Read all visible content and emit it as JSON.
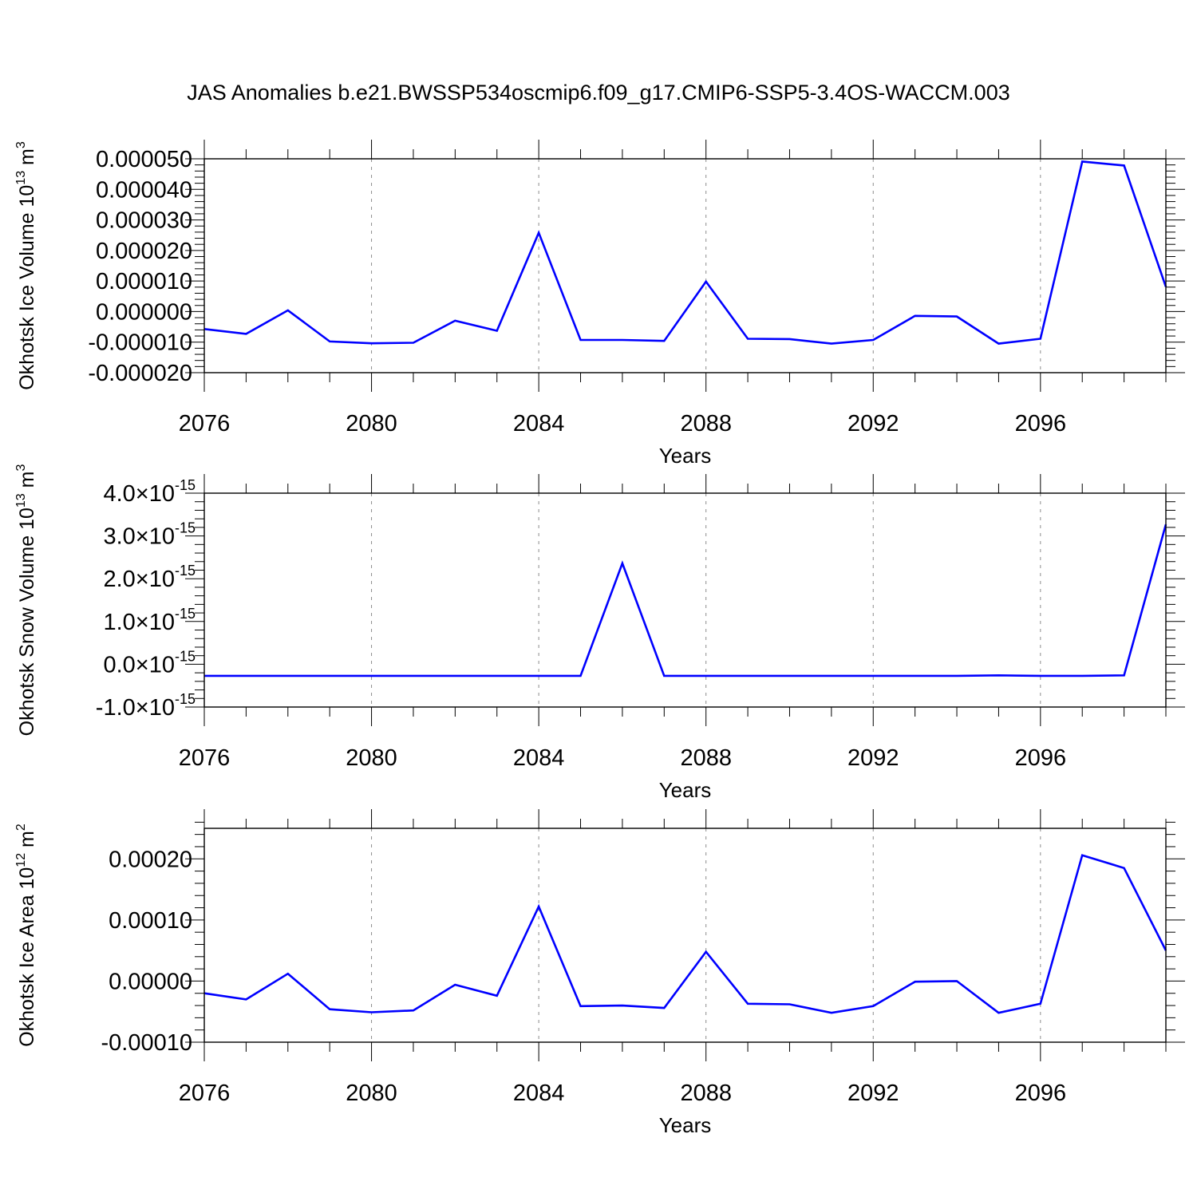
{
  "title": "JAS Anomalies b.e21.BWSSP534oscmip6.f09_g17.CMIP6-SSP5-3.4OS-WACCM.003",
  "colors": {
    "line": "#0000ff",
    "axis": "#000000",
    "grid": "#8c8c8c"
  },
  "chart_data": [
    {
      "type": "line",
      "ylabel": "Okhotsk Ice Volume 10",
      "ylabel_exp": "13",
      "ylabel_unit": " m",
      "ylabel_unit_exp": "3",
      "xlabel": "Years",
      "xlim": [
        2076,
        2099
      ],
      "ylim": [
        -2e-05,
        5e-05
      ],
      "xticks": [
        2076,
        2080,
        2084,
        2088,
        2092,
        2096
      ],
      "xtick_labels": [
        "2076",
        "2080",
        "2084",
        "2088",
        "2092",
        "2096"
      ],
      "yticks": [
        -2e-05,
        -1e-05,
        0,
        1e-05,
        2e-05,
        3e-05,
        4e-05,
        5e-05
      ],
      "ytick_labels": [
        "-0.000020",
        "-0.000010",
        "0.000000",
        "0.000010",
        "0.000020",
        "0.000030",
        "0.000040",
        "0.000050"
      ],
      "grid": "x dashed at major ticks",
      "x": [
        2076,
        2077,
        2078,
        2079,
        2080,
        2081,
        2082,
        2083,
        2084,
        2085,
        2086,
        2087,
        2088,
        2089,
        2090,
        2091,
        2092,
        2093,
        2094,
        2095,
        2096,
        2097,
        2098,
        2099
      ],
      "series": [
        {
          "values": [
            -5.7e-06,
            -7.3e-06,
            4e-07,
            -9.8e-06,
            -1.04e-05,
            -1.02e-05,
            -3e-06,
            -6.3e-06,
            2.58e-05,
            -9.3e-06,
            -9.3e-06,
            -9.6e-06,
            9.8e-06,
            -8.9e-06,
            -9e-06,
            -1.05e-05,
            -9.3e-06,
            -1.4e-06,
            -1.6e-06,
            -1.05e-05,
            -8.9e-06,
            4.91e-05,
            4.78e-05,
            8.1e-06
          ]
        }
      ]
    },
    {
      "type": "line",
      "ylabel": "Okhotsk Snow Volume 10",
      "ylabel_exp": "13",
      "ylabel_unit": " m",
      "ylabel_unit_exp": "3",
      "xlabel": "Years",
      "xlim": [
        2076,
        2099
      ],
      "ylim": [
        -1e-15,
        4e-15
      ],
      "xticks": [
        2076,
        2080,
        2084,
        2088,
        2092,
        2096
      ],
      "xtick_labels": [
        "2076",
        "2080",
        "2084",
        "2088",
        "2092",
        "2096"
      ],
      "yticks": [
        -1e-15,
        0,
        1e-15,
        2e-15,
        3e-15,
        4e-15
      ],
      "ytick_labels": [
        {
          "mant": "-1.0",
          "times": "×",
          "base": "10",
          "exp": "-15"
        },
        {
          "mant": "0.0",
          "times": "×",
          "base": "10",
          "exp": "-15"
        },
        {
          "mant": "1.0",
          "times": "×",
          "base": "10",
          "exp": "-15"
        },
        {
          "mant": "2.0",
          "times": "×",
          "base": "10",
          "exp": "-15"
        },
        {
          "mant": "3.0",
          "times": "×",
          "base": "10",
          "exp": "-15"
        },
        {
          "mant": "4.0",
          "times": "×",
          "base": "10",
          "exp": "-15"
        }
      ],
      "grid": "x dashed at major ticks",
      "x": [
        2076,
        2077,
        2078,
        2079,
        2080,
        2081,
        2082,
        2083,
        2084,
        2085,
        2086,
        2087,
        2088,
        2089,
        2090,
        2091,
        2092,
        2093,
        2094,
        2095,
        2096,
        2097,
        2098,
        2099
      ],
      "series": [
        {
          "values": [
            -2.7e-16,
            -2.7e-16,
            -2.7e-16,
            -2.7e-16,
            -2.7e-16,
            -2.7e-16,
            -2.7e-16,
            -2.7e-16,
            -2.7e-16,
            -2.7e-16,
            2.36e-15,
            -2.7e-16,
            -2.7e-16,
            -2.7e-16,
            -2.7e-16,
            -2.7e-16,
            -2.7e-16,
            -2.7e-16,
            -2.7e-16,
            -2.6e-16,
            -2.7e-16,
            -2.7e-16,
            -2.6e-16,
            3.27e-15
          ]
        }
      ]
    },
    {
      "type": "line",
      "ylabel": "Okhotsk Ice Area 10",
      "ylabel_exp": "12",
      "ylabel_unit": " m",
      "ylabel_unit_exp": "2",
      "xlabel": "Years",
      "xlim": [
        2076,
        2099
      ],
      "ylim": [
        -0.0001,
        0.00025
      ],
      "xticks": [
        2076,
        2080,
        2084,
        2088,
        2092,
        2096
      ],
      "xtick_labels": [
        "2076",
        "2080",
        "2084",
        "2088",
        "2092",
        "2096"
      ],
      "yticks": [
        -0.0001,
        0,
        0.0001,
        0.0002
      ],
      "ytick_labels": [
        "-0.00010",
        "0.00000",
        "0.00010",
        "0.00020"
      ],
      "grid": "x dashed at major ticks",
      "x": [
        2076,
        2077,
        2078,
        2079,
        2080,
        2081,
        2082,
        2083,
        2084,
        2085,
        2086,
        2087,
        2088,
        2089,
        2090,
        2091,
        2092,
        2093,
        2094,
        2095,
        2096,
        2097,
        2098,
        2099
      ],
      "series": [
        {
          "values": [
            -2e-05,
            -3e-05,
            1.2e-05,
            -4.6e-05,
            -5.1e-05,
            -4.8e-05,
            -6e-06,
            -2.4e-05,
            0.000122,
            -4.1e-05,
            -4e-05,
            -4.4e-05,
            4.8e-05,
            -3.7e-05,
            -3.8e-05,
            -5.2e-05,
            -4.1e-05,
            -1e-06,
            0,
            -5.2e-05,
            -3.7e-05,
            0.000206,
            0.000185,
            5e-05
          ]
        }
      ]
    }
  ]
}
